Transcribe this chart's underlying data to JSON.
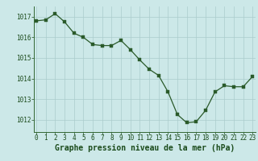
{
  "x": [
    0,
    1,
    2,
    3,
    4,
    5,
    6,
    7,
    8,
    9,
    10,
    11,
    12,
    13,
    14,
    15,
    16,
    17,
    18,
    19,
    20,
    21,
    22,
    23
  ],
  "y": [
    1016.8,
    1016.85,
    1017.15,
    1016.75,
    1016.2,
    1016.0,
    1015.65,
    1015.6,
    1015.6,
    1015.85,
    1015.4,
    1014.9,
    1014.45,
    1014.15,
    1013.35,
    1012.25,
    1011.85,
    1011.9,
    1012.45,
    1013.35,
    1013.65,
    1013.6,
    1013.6,
    1014.1
  ],
  "line_color": "#2a5a2a",
  "marker_color": "#2a5a2a",
  "bg_color": "#cce8e8",
  "grid_color": "#aacccc",
  "xlabel": "Graphe pression niveau de la mer (hPa)",
  "xlabel_color": "#1a4a1a",
  "tick_color": "#1a4a1a",
  "ylim": [
    1011.4,
    1017.5
  ],
  "yticks": [
    1012,
    1013,
    1014,
    1015,
    1016,
    1017
  ],
  "xticks": [
    0,
    1,
    2,
    3,
    4,
    5,
    6,
    7,
    8,
    9,
    10,
    11,
    12,
    13,
    14,
    15,
    16,
    17,
    18,
    19,
    20,
    21,
    22,
    23
  ],
  "spine_color": "#336633",
  "tick_fontsize": 5.5,
  "xlabel_fontsize": 7.0,
  "linewidth": 0.9,
  "markersize": 2.2
}
